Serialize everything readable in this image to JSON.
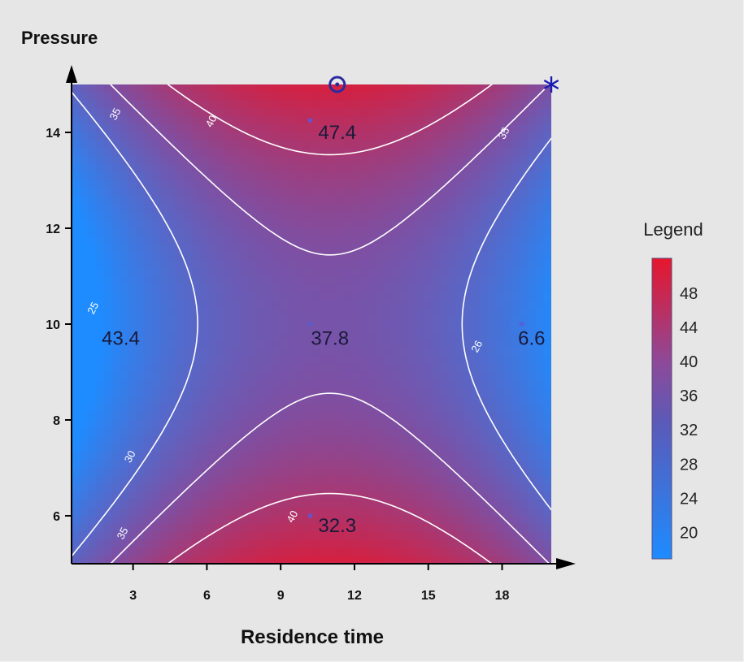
{
  "chart_data": {
    "type": "heatmap",
    "xlabel": "Residence time",
    "ylabel": "Pressure",
    "xlim": [
      0.5,
      20
    ],
    "ylim": [
      5,
      15
    ],
    "xticks": [
      3,
      6,
      9,
      12,
      15,
      18
    ],
    "yticks": [
      6,
      8,
      10,
      12,
      14
    ],
    "contour_levels": [
      {
        "value": 25,
        "label": "25",
        "at": [
          1.5,
          10.3
        ]
      },
      {
        "value": 30,
        "label": "30",
        "at": [
          3.0,
          7.2
        ]
      },
      {
        "value": 35,
        "label": "35",
        "at": [
          2.4,
          14.35
        ]
      },
      {
        "value": 35,
        "label": "35",
        "at": [
          2.7,
          5.6
        ]
      },
      {
        "value": 35,
        "label": "35",
        "at": [
          18.2,
          13.95
        ]
      },
      {
        "value": 40,
        "label": "40",
        "at": [
          6.3,
          14.2
        ]
      },
      {
        "value": 40,
        "label": "40",
        "at": [
          9.6,
          5.95
        ]
      },
      {
        "value": 26,
        "label": "26",
        "at": [
          17.1,
          9.5
        ]
      }
    ],
    "annotations": [
      {
        "text": "47.4",
        "x": 11.3,
        "y": 14.0
      },
      {
        "text": "43.4",
        "x": 2.5,
        "y": 9.7
      },
      {
        "text": "37.8",
        "x": 11.0,
        "y": 9.7
      },
      {
        "text": "6.6",
        "x": 19.2,
        "y": 9.7
      },
      {
        "text": "32.3",
        "x": 11.3,
        "y": 5.8
      }
    ],
    "design_points": [
      {
        "x": 10.2,
        "y": 14.25
      },
      {
        "x": 10.2,
        "y": 10.0
      },
      {
        "x": 18.8,
        "y": 10.0
      },
      {
        "x": 10.2,
        "y": 6.0
      }
    ],
    "markers": [
      {
        "symbol": "circle",
        "x": 11.3,
        "y": 15
      },
      {
        "symbol": "asterisk",
        "x": 20,
        "y": 15
      }
    ],
    "legend": {
      "title": "Legend",
      "position": "right",
      "ticks": [
        20,
        24,
        28,
        32,
        36,
        40,
        44,
        48
      ],
      "range": [
        16.8,
        52
      ],
      "colors": {
        "low": "#1e8cff",
        "mid": "#7e4fa2",
        "high": "#e6162c"
      }
    }
  }
}
